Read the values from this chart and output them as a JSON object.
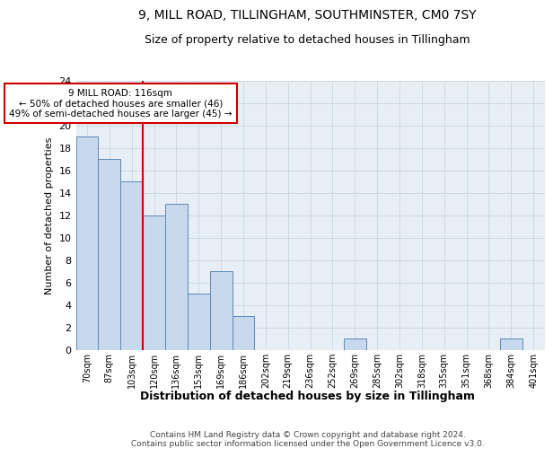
{
  "title": "9, MILL ROAD, TILLINGHAM, SOUTHMINSTER, CM0 7SY",
  "subtitle": "Size of property relative to detached houses in Tillingham",
  "xlabel": "Distribution of detached houses by size in Tillingham",
  "ylabel": "Number of detached properties",
  "categories": [
    "70sqm",
    "87sqm",
    "103sqm",
    "120sqm",
    "136sqm",
    "153sqm",
    "169sqm",
    "186sqm",
    "202sqm",
    "219sqm",
    "236sqm",
    "252sqm",
    "269sqm",
    "285sqm",
    "302sqm",
    "318sqm",
    "335sqm",
    "351sqm",
    "368sqm",
    "384sqm",
    "401sqm"
  ],
  "values": [
    19,
    17,
    15,
    12,
    13,
    5,
    7,
    3,
    0,
    0,
    0,
    0,
    1,
    0,
    0,
    0,
    0,
    0,
    0,
    1,
    0
  ],
  "bar_color": "#c9d9ed",
  "bar_edge_color": "#5b8ab5",
  "vline_color": "#cc0000",
  "annotation_text": "9 MILL ROAD: 116sqm\n← 50% of detached houses are smaller (46)\n49% of semi-detached houses are larger (45) →",
  "annotation_box_color": "#ffffff",
  "annotation_box_edge_color": "#cc0000",
  "ylim": [
    0,
    24
  ],
  "yticks": [
    0,
    2,
    4,
    6,
    8,
    10,
    12,
    14,
    16,
    18,
    20,
    22,
    24
  ],
  "grid_color": "#d0d8e4",
  "bg_color": "#e8eef5",
  "footnote": "Contains HM Land Registry data © Crown copyright and database right 2024.\nContains public sector information licensed under the Open Government Licence v3.0.",
  "title_fontsize": 10,
  "subtitle_fontsize": 9,
  "footnote_fontsize": 6.5
}
